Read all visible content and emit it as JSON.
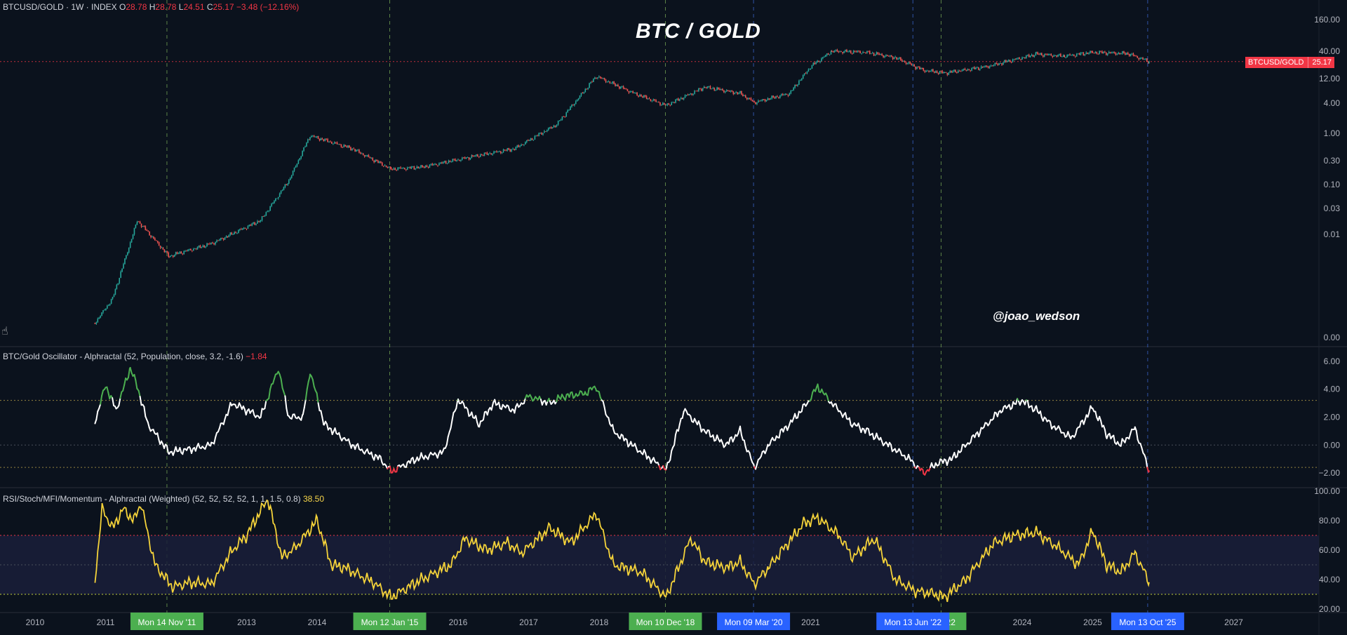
{
  "header": {
    "symbol": "BTCUSD/GOLD · 1W · INDEX",
    "open_label": "O",
    "open": "28.78",
    "high_label": "H",
    "high": "28.78",
    "low_label": "L",
    "low": "24.51",
    "close_label": "C",
    "close": "25.17",
    "change": "−3.48 (−12.16%)"
  },
  "title": "BTC / GOLD",
  "watermark": "@joao_wedson",
  "price_tag": {
    "label": "BTCUSD/GOLD",
    "value": "25.17"
  },
  "osc_header": {
    "text": "BTC/Gold Oscillator - Alphractal (52, Population, close, 3.2, -1.6)",
    "value": "−1.84"
  },
  "rsi_header": {
    "text": "RSI/Stoch/MFI/Momentum - Alphractal (Weighted) (52, 52, 52, 52, 1, 1, 1.5, 0.8)",
    "value": "38.50"
  },
  "colors": {
    "background": "#0b121d",
    "candle_up": "#26a69a",
    "candle_down": "#ef5350",
    "osc_line": "#ffffff",
    "osc_high": "#4caf50",
    "osc_low": "#f23645",
    "rsi_line": "#f5d33a",
    "green_marker": "#4caf50",
    "blue_marker": "#2962ff"
  },
  "chart_data": [
    {
      "type": "line",
      "name": "BTCUSD/GOLD",
      "scale": "log",
      "y_ticks": [
        "160.00",
        "40.00",
        "12.00",
        "4.00",
        "1.00",
        "0.30",
        "0.10",
        "0.03",
        "0.01",
        "0.00"
      ],
      "x": [
        2010.85,
        2011.1,
        2011.45,
        2011.9,
        2012.5,
        2013.2,
        2013.6,
        2013.9,
        2014.5,
        2015.05,
        2015.5,
        2016.2,
        2016.8,
        2017.4,
        2017.96,
        2018.5,
        2018.95,
        2019.5,
        2020.0,
        2020.2,
        2020.7,
        2021.0,
        2021.3,
        2021.8,
        2022.2,
        2022.6,
        2022.9,
        2023.5,
        2024.2,
        2024.6,
        2025.0,
        2025.5,
        2025.8
      ],
      "y": [
        0.0002,
        0.0006,
        0.02,
        0.004,
        0.007,
        0.02,
        0.12,
        0.9,
        0.5,
        0.2,
        0.22,
        0.35,
        0.5,
        1.5,
        13,
        6,
        3.5,
        8,
        6,
        4,
        6,
        20,
        40,
        38,
        30,
        17,
        15,
        20,
        35,
        32,
        38,
        36,
        25.17
      ],
      "last_value": 25.17,
      "reference_line": 25.17
    },
    {
      "type": "line",
      "name": "BTC/Gold Oscillator",
      "y_ticks": [
        "6.00",
        "4.00",
        "2.00",
        "0.00",
        "−2.00"
      ],
      "ylim": [
        -2.8,
        6.5
      ],
      "thresholds": [
        3.2,
        0,
        -1.6
      ],
      "x": [
        2010.85,
        2011.0,
        2011.15,
        2011.35,
        2011.45,
        2011.6,
        2011.9,
        2012.2,
        2012.5,
        2012.8,
        2013.2,
        2013.45,
        2013.6,
        2013.8,
        2013.9,
        2014.1,
        2014.5,
        2014.9,
        2015.05,
        2015.4,
        2015.8,
        2016.0,
        2016.3,
        2016.5,
        2016.8,
        2017.0,
        2017.3,
        2017.5,
        2017.8,
        2017.96,
        2018.2,
        2018.6,
        2018.95,
        2019.2,
        2019.5,
        2019.8,
        2020.0,
        2020.2,
        2020.4,
        2020.7,
        2020.95,
        2021.1,
        2021.3,
        2021.6,
        2021.8,
        2022.1,
        2022.4,
        2022.6,
        2022.8,
        2023.0,
        2023.4,
        2023.7,
        2024.0,
        2024.2,
        2024.4,
        2024.7,
        2025.0,
        2025.2,
        2025.4,
        2025.6,
        2025.8
      ],
      "y": [
        1.7,
        4.3,
        2.5,
        5.5,
        4.2,
        1.5,
        -0.5,
        -0.3,
        0.0,
        3.0,
        2.0,
        5.5,
        2.0,
        2.0,
        5.3,
        1.5,
        0.0,
        -1.0,
        -1.9,
        -1.0,
        -0.5,
        3.3,
        1.5,
        3.0,
        2.5,
        3.5,
        3.0,
        3.5,
        3.7,
        4.2,
        1.0,
        -0.5,
        -1.8,
        2.5,
        1.0,
        0.0,
        1.0,
        -1.6,
        0.0,
        1.5,
        3.0,
        4.2,
        3.0,
        1.5,
        1.0,
        0.0,
        -1.0,
        -2.0,
        -1.3,
        -1.0,
        1.0,
        2.5,
        3.2,
        2.5,
        1.5,
        0.5,
        2.7,
        0.8,
        0.0,
        1.2,
        -1.84
      ],
      "last_value": -1.84
    },
    {
      "type": "line",
      "name": "RSI/Stoch/MFI/Momentum",
      "y_ticks": [
        "100.00",
        "80.00",
        "60.00",
        "40.00",
        "20.00"
      ],
      "ylim": [
        20,
        100
      ],
      "thresholds": [
        70,
        30
      ],
      "x": [
        2010.85,
        2010.95,
        2011.1,
        2011.25,
        2011.4,
        2011.5,
        2011.7,
        2011.95,
        2012.2,
        2012.5,
        2012.8,
        2013.0,
        2013.3,
        2013.5,
        2013.7,
        2014.0,
        2014.2,
        2014.4,
        2014.8,
        2015.05,
        2015.4,
        2015.9,
        2016.1,
        2016.4,
        2016.7,
        2016.9,
        2017.3,
        2017.6,
        2017.96,
        2018.2,
        2018.6,
        2018.95,
        2019.3,
        2019.5,
        2019.8,
        2020.0,
        2020.2,
        2020.4,
        2020.6,
        2020.9,
        2021.1,
        2021.4,
        2021.6,
        2021.9,
        2022.2,
        2022.5,
        2022.7,
        2022.9,
        2023.2,
        2023.6,
        2023.9,
        2024.2,
        2024.5,
        2024.8,
        2025.0,
        2025.2,
        2025.4,
        2025.6,
        2025.8
      ],
      "y": [
        40,
        88,
        75,
        88,
        80,
        92,
        50,
        35,
        38,
        37,
        60,
        70,
        95,
        55,
        62,
        80,
        50,
        48,
        38,
        28,
        38,
        50,
        68,
        60,
        65,
        58,
        75,
        65,
        85,
        50,
        45,
        28,
        68,
        52,
        48,
        52,
        37,
        48,
        60,
        78,
        82,
        70,
        55,
        68,
        40,
        32,
        31,
        28,
        40,
        65,
        70,
        72,
        62,
        50,
        73,
        50,
        45,
        58,
        38.5
      ],
      "last_value": 38.5
    }
  ],
  "x_axis": {
    "ticks": [
      {
        "label": "2010",
        "x": 2010
      },
      {
        "label": "2011",
        "x": 2011
      },
      {
        "label": "2013",
        "x": 2013
      },
      {
        "label": "2014",
        "x": 2014
      },
      {
        "label": "2016",
        "x": 2016
      },
      {
        "label": "2017",
        "x": 2017
      },
      {
        "label": "2018",
        "x": 2018
      },
      {
        "label": "2021",
        "x": 2021
      },
      {
        "label": "2024",
        "x": 2024
      },
      {
        "label": "2025",
        "x": 2025
      },
      {
        "label": "2027",
        "x": 2027
      }
    ],
    "markers": [
      {
        "label": "Mon 14 Nov '11",
        "x": 2011.87,
        "color": "green"
      },
      {
        "label": "Mon 12 Jan '15",
        "x": 2015.03,
        "color": "green"
      },
      {
        "label": "Mon 10 Dec '18",
        "x": 2018.94,
        "color": "green"
      },
      {
        "label": "Mon 09 Mar '20",
        "x": 2020.19,
        "color": "blue"
      },
      {
        "label": "Mon 13 Jun '22",
        "x": 2022.45,
        "color": "blue"
      },
      {
        "label": "Mon 13 Oct '25",
        "x": 2025.78,
        "color": "blue"
      }
    ],
    "partial_labels": [
      "2",
      "v '22"
    ],
    "extra_guides": [
      {
        "x": 2022.85,
        "color": "green"
      }
    ]
  }
}
